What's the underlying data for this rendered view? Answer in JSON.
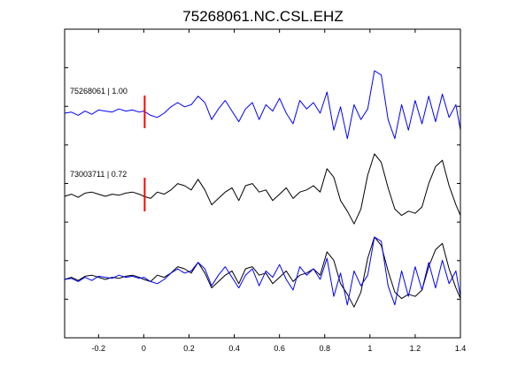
{
  "chart_data": {
    "type": "line",
    "title": "75268061.NC.CSL.EHZ",
    "xlabel": "",
    "ylabel": "",
    "xlim": [
      -0.35,
      1.4
    ],
    "x_ticks": [
      -0.2,
      0,
      0.2,
      0.4,
      0.6,
      0.8,
      1,
      1.2,
      1.4
    ],
    "x_tick_labels": [
      "-0.2",
      "0",
      "0.2",
      "0.4",
      "0.6",
      "0.8",
      "1",
      "1.2",
      "1.4"
    ],
    "y_tick_count": 7,
    "grid": false,
    "legend": "none",
    "pick_time": 0,
    "panels": [
      {
        "label": "75268061 | 1.00",
        "series": [
          {
            "color": "#0000ff",
            "x": [
              -0.35,
              -0.32,
              -0.29,
              -0.26,
              -0.23,
              -0.2,
              -0.17,
              -0.14,
              -0.11,
              -0.08,
              -0.05,
              -0.02,
              0.0,
              0.03,
              0.06,
              0.09,
              0.12,
              0.15,
              0.18,
              0.21,
              0.24,
              0.27,
              0.3,
              0.33,
              0.36,
              0.39,
              0.42,
              0.45,
              0.48,
              0.51,
              0.54,
              0.57,
              0.6,
              0.63,
              0.66,
              0.69,
              0.72,
              0.75,
              0.78,
              0.81,
              0.84,
              0.87,
              0.9,
              0.93,
              0.96,
              0.99,
              1.02,
              1.05,
              1.08,
              1.11,
              1.14,
              1.17,
              1.2,
              1.23,
              1.26,
              1.29,
              1.32,
              1.35,
              1.38,
              1.4
            ],
            "y": [
              0.0,
              0.05,
              -0.1,
              0.1,
              -0.05,
              0.15,
              0.1,
              0.05,
              0.2,
              0.1,
              0.15,
              0.05,
              0.1,
              -0.1,
              -0.2,
              0.0,
              0.3,
              0.5,
              0.3,
              0.4,
              0.8,
              0.5,
              -0.3,
              0.2,
              0.6,
              0.1,
              -0.4,
              0.2,
              0.5,
              -0.3,
              0.4,
              0.1,
              0.7,
              0.0,
              -0.5,
              0.6,
              0.2,
              0.5,
              0.0,
              1.0,
              -0.8,
              0.3,
              -1.2,
              0.4,
              -0.3,
              0.2,
              2.0,
              1.8,
              -0.3,
              -1.2,
              0.4,
              -0.8,
              0.6,
              -0.5,
              0.8,
              -0.4,
              0.9,
              -0.2,
              0.4,
              -0.8
            ]
          }
        ]
      },
      {
        "label": "73003711 | 0.72",
        "series": [
          {
            "color": "#000000",
            "x": [
              -0.35,
              -0.32,
              -0.29,
              -0.26,
              -0.23,
              -0.2,
              -0.17,
              -0.14,
              -0.11,
              -0.08,
              -0.05,
              -0.02,
              0.0,
              0.03,
              0.06,
              0.09,
              0.12,
              0.15,
              0.18,
              0.21,
              0.24,
              0.27,
              0.3,
              0.33,
              0.36,
              0.39,
              0.42,
              0.45,
              0.48,
              0.51,
              0.54,
              0.57,
              0.6,
              0.63,
              0.66,
              0.69,
              0.72,
              0.75,
              0.78,
              0.81,
              0.84,
              0.87,
              0.9,
              0.93,
              0.96,
              0.99,
              1.02,
              1.05,
              1.08,
              1.11,
              1.14,
              1.17,
              1.2,
              1.23,
              1.26,
              1.29,
              1.32,
              1.35,
              1.38,
              1.4
            ],
            "y": [
              0.0,
              0.1,
              -0.05,
              0.15,
              0.2,
              0.1,
              0.0,
              0.1,
              0.05,
              0.15,
              0.2,
              0.1,
              0.0,
              -0.1,
              0.2,
              0.1,
              0.3,
              0.6,
              0.5,
              0.3,
              0.8,
              0.3,
              -0.4,
              -0.1,
              0.2,
              0.4,
              -0.2,
              0.5,
              0.6,
              0.2,
              0.3,
              -0.2,
              0.1,
              0.4,
              -0.1,
              0.2,
              0.3,
              0.5,
              0.2,
              1.3,
              0.9,
              -0.2,
              -0.7,
              -1.3,
              -0.6,
              1.0,
              2.0,
              1.6,
              0.4,
              -0.6,
              -0.9,
              -0.7,
              -0.8,
              -0.5,
              0.6,
              1.4,
              1.7,
              0.5,
              -0.4,
              -0.9
            ]
          }
        ]
      },
      {
        "label": "",
        "series": [
          {
            "color": "#000000",
            "x": [
              -0.35,
              -0.32,
              -0.29,
              -0.26,
              -0.23,
              -0.2,
              -0.17,
              -0.14,
              -0.11,
              -0.08,
              -0.05,
              -0.02,
              0.0,
              0.03,
              0.06,
              0.09,
              0.12,
              0.15,
              0.18,
              0.21,
              0.24,
              0.27,
              0.3,
              0.33,
              0.36,
              0.39,
              0.42,
              0.45,
              0.48,
              0.51,
              0.54,
              0.57,
              0.6,
              0.63,
              0.66,
              0.69,
              0.72,
              0.75,
              0.78,
              0.81,
              0.84,
              0.87,
              0.9,
              0.93,
              0.96,
              0.99,
              1.02,
              1.05,
              1.08,
              1.11,
              1.14,
              1.17,
              1.2,
              1.23,
              1.26,
              1.29,
              1.32,
              1.35,
              1.38,
              1.4
            ],
            "y": [
              0.0,
              0.1,
              -0.05,
              0.15,
              0.2,
              0.1,
              0.0,
              0.1,
              0.05,
              0.15,
              0.2,
              0.1,
              0.0,
              -0.1,
              0.2,
              0.1,
              0.3,
              0.6,
              0.5,
              0.3,
              0.8,
              0.3,
              -0.4,
              -0.1,
              0.2,
              0.4,
              -0.2,
              0.5,
              0.6,
              0.2,
              0.3,
              -0.2,
              0.1,
              0.4,
              -0.1,
              0.2,
              0.3,
              0.5,
              0.2,
              1.3,
              0.9,
              -0.2,
              -0.7,
              -1.3,
              -0.6,
              1.0,
              2.0,
              1.6,
              0.4,
              -0.6,
              -0.9,
              -0.7,
              -0.8,
              -0.5,
              0.6,
              1.4,
              1.7,
              0.5,
              -0.4,
              -0.9
            ]
          },
          {
            "color": "#0000ff",
            "x": [
              -0.35,
              -0.32,
              -0.29,
              -0.26,
              -0.23,
              -0.2,
              -0.17,
              -0.14,
              -0.11,
              -0.08,
              -0.05,
              -0.02,
              0.0,
              0.03,
              0.06,
              0.09,
              0.12,
              0.15,
              0.18,
              0.21,
              0.24,
              0.27,
              0.3,
              0.33,
              0.36,
              0.39,
              0.42,
              0.45,
              0.48,
              0.51,
              0.54,
              0.57,
              0.6,
              0.63,
              0.66,
              0.69,
              0.72,
              0.75,
              0.78,
              0.81,
              0.84,
              0.87,
              0.9,
              0.93,
              0.96,
              0.99,
              1.02,
              1.05,
              1.08,
              1.11,
              1.14,
              1.17,
              1.2,
              1.23,
              1.26,
              1.29,
              1.32,
              1.35,
              1.38,
              1.4
            ],
            "y": [
              0.0,
              0.05,
              -0.1,
              0.1,
              -0.05,
              0.15,
              0.1,
              0.05,
              0.2,
              0.1,
              0.15,
              0.05,
              0.1,
              -0.1,
              -0.2,
              0.0,
              0.3,
              0.5,
              0.3,
              0.4,
              0.8,
              0.5,
              -0.3,
              0.2,
              0.6,
              0.1,
              -0.4,
              0.2,
              0.5,
              -0.3,
              0.4,
              0.1,
              0.7,
              0.0,
              -0.5,
              0.6,
              0.2,
              0.5,
              0.0,
              1.0,
              -0.8,
              0.3,
              -1.2,
              0.4,
              -0.3,
              0.2,
              2.0,
              1.8,
              -0.3,
              -1.2,
              0.4,
              -0.8,
              0.6,
              -0.5,
              0.8,
              -0.4,
              0.9,
              -0.2,
              0.4,
              -0.8
            ]
          }
        ]
      }
    ]
  }
}
